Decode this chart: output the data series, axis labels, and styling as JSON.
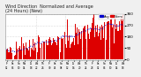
{
  "title": "Wind Direction  Normalized and Average",
  "title2": "(24 Hours) (New)",
  "title_fontsize": 3.5,
  "bg_color": "#f0f0f0",
  "plot_bg_color": "#ffffff",
  "grid_color": "#bbbbbb",
  "bar_color": "#dd0000",
  "avg_color": "#0000cc",
  "ylim_low": -5,
  "ylim_high": 360,
  "yticks": [
    0,
    90,
    180,
    270,
    360
  ],
  "num_points": 240,
  "seed": 42,
  "legend_blue_label": "Avg",
  "legend_red_label": "Norm"
}
